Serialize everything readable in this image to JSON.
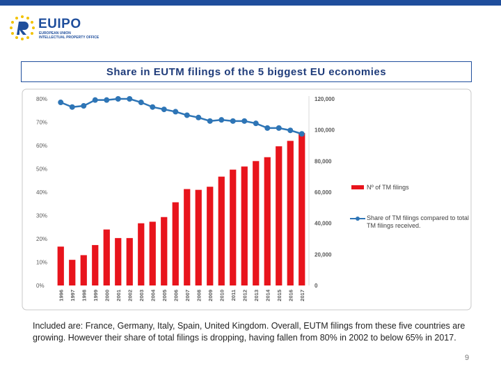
{
  "header": {
    "logo_text": "EUIPO",
    "logo_subtitle_1": "EUROPEAN UNION",
    "logo_subtitle_2": "INTELLECTUAL PROPERTY OFFICE",
    "title": "Share in EUTM filings of the 5 biggest EU economies"
  },
  "chart_data": {
    "type": "bar",
    "categories": [
      "1996",
      "1997",
      "1998",
      "1999",
      "2000",
      "2001",
      "2002",
      "2003",
      "2004",
      "2005",
      "2006",
      "2007",
      "2008",
      "2009",
      "2010",
      "2011",
      "2012",
      "2013",
      "2014",
      "2015",
      "2016",
      "2017"
    ],
    "series": [
      {
        "name": "Nº of TM filings",
        "type": "bar",
        "axis": "y2",
        "color": "#e8141c",
        "values": [
          25000,
          16500,
          19500,
          26000,
          36000,
          30500,
          30500,
          40000,
          41000,
          44000,
          53500,
          62000,
          61500,
          63500,
          70000,
          74500,
          76500,
          80000,
          82500,
          89500,
          93000,
          98000
        ]
      },
      {
        "name": "Share of TM filings compared to total TM filings received.",
        "type": "line",
        "axis": "y",
        "color": "#2e75b6",
        "values": [
          78.5,
          76.5,
          77,
          79.5,
          79.5,
          80,
          80,
          78.5,
          76.5,
          75.5,
          74.5,
          73,
          72,
          70.5,
          71,
          70.5,
          70.5,
          69.5,
          67.5,
          67.5,
          66.5,
          65
        ]
      }
    ],
    "ylim": [
      0,
      80
    ],
    "yticks": [
      {
        "value": 0,
        "label": "0%"
      },
      {
        "value": 10,
        "label": "10%"
      },
      {
        "value": 20,
        "label": "20%"
      },
      {
        "value": 30,
        "label": "30%"
      },
      {
        "value": 40,
        "label": "40%"
      },
      {
        "value": 50,
        "label": "50%"
      },
      {
        "value": 60,
        "label": "60%"
      },
      {
        "value": 70,
        "label": "70%"
      },
      {
        "value": 80,
        "label": "80%"
      }
    ],
    "y2lim": [
      0,
      120000
    ],
    "y2ticks": [
      0,
      {
        "value": 20000,
        "label": "20,000"
      },
      {
        "value": 40000,
        "label": "40,000"
      },
      {
        "value": 60000,
        "label": "60,000"
      },
      {
        "value": 80000,
        "label": "80,000"
      },
      {
        "value": 100000,
        "label": "100,000"
      },
      {
        "value": 120000,
        "label": "120,000"
      }
    ],
    "legend": "right",
    "grid": false
  },
  "caption": "Included are: France, Germany, Italy, Spain, United Kingdom. Overall, EUTM filings from these five countries are growing. However their share of total filings is dropping, having fallen from 80% in 2002 to below 65% in 2017.",
  "page_number": "9"
}
